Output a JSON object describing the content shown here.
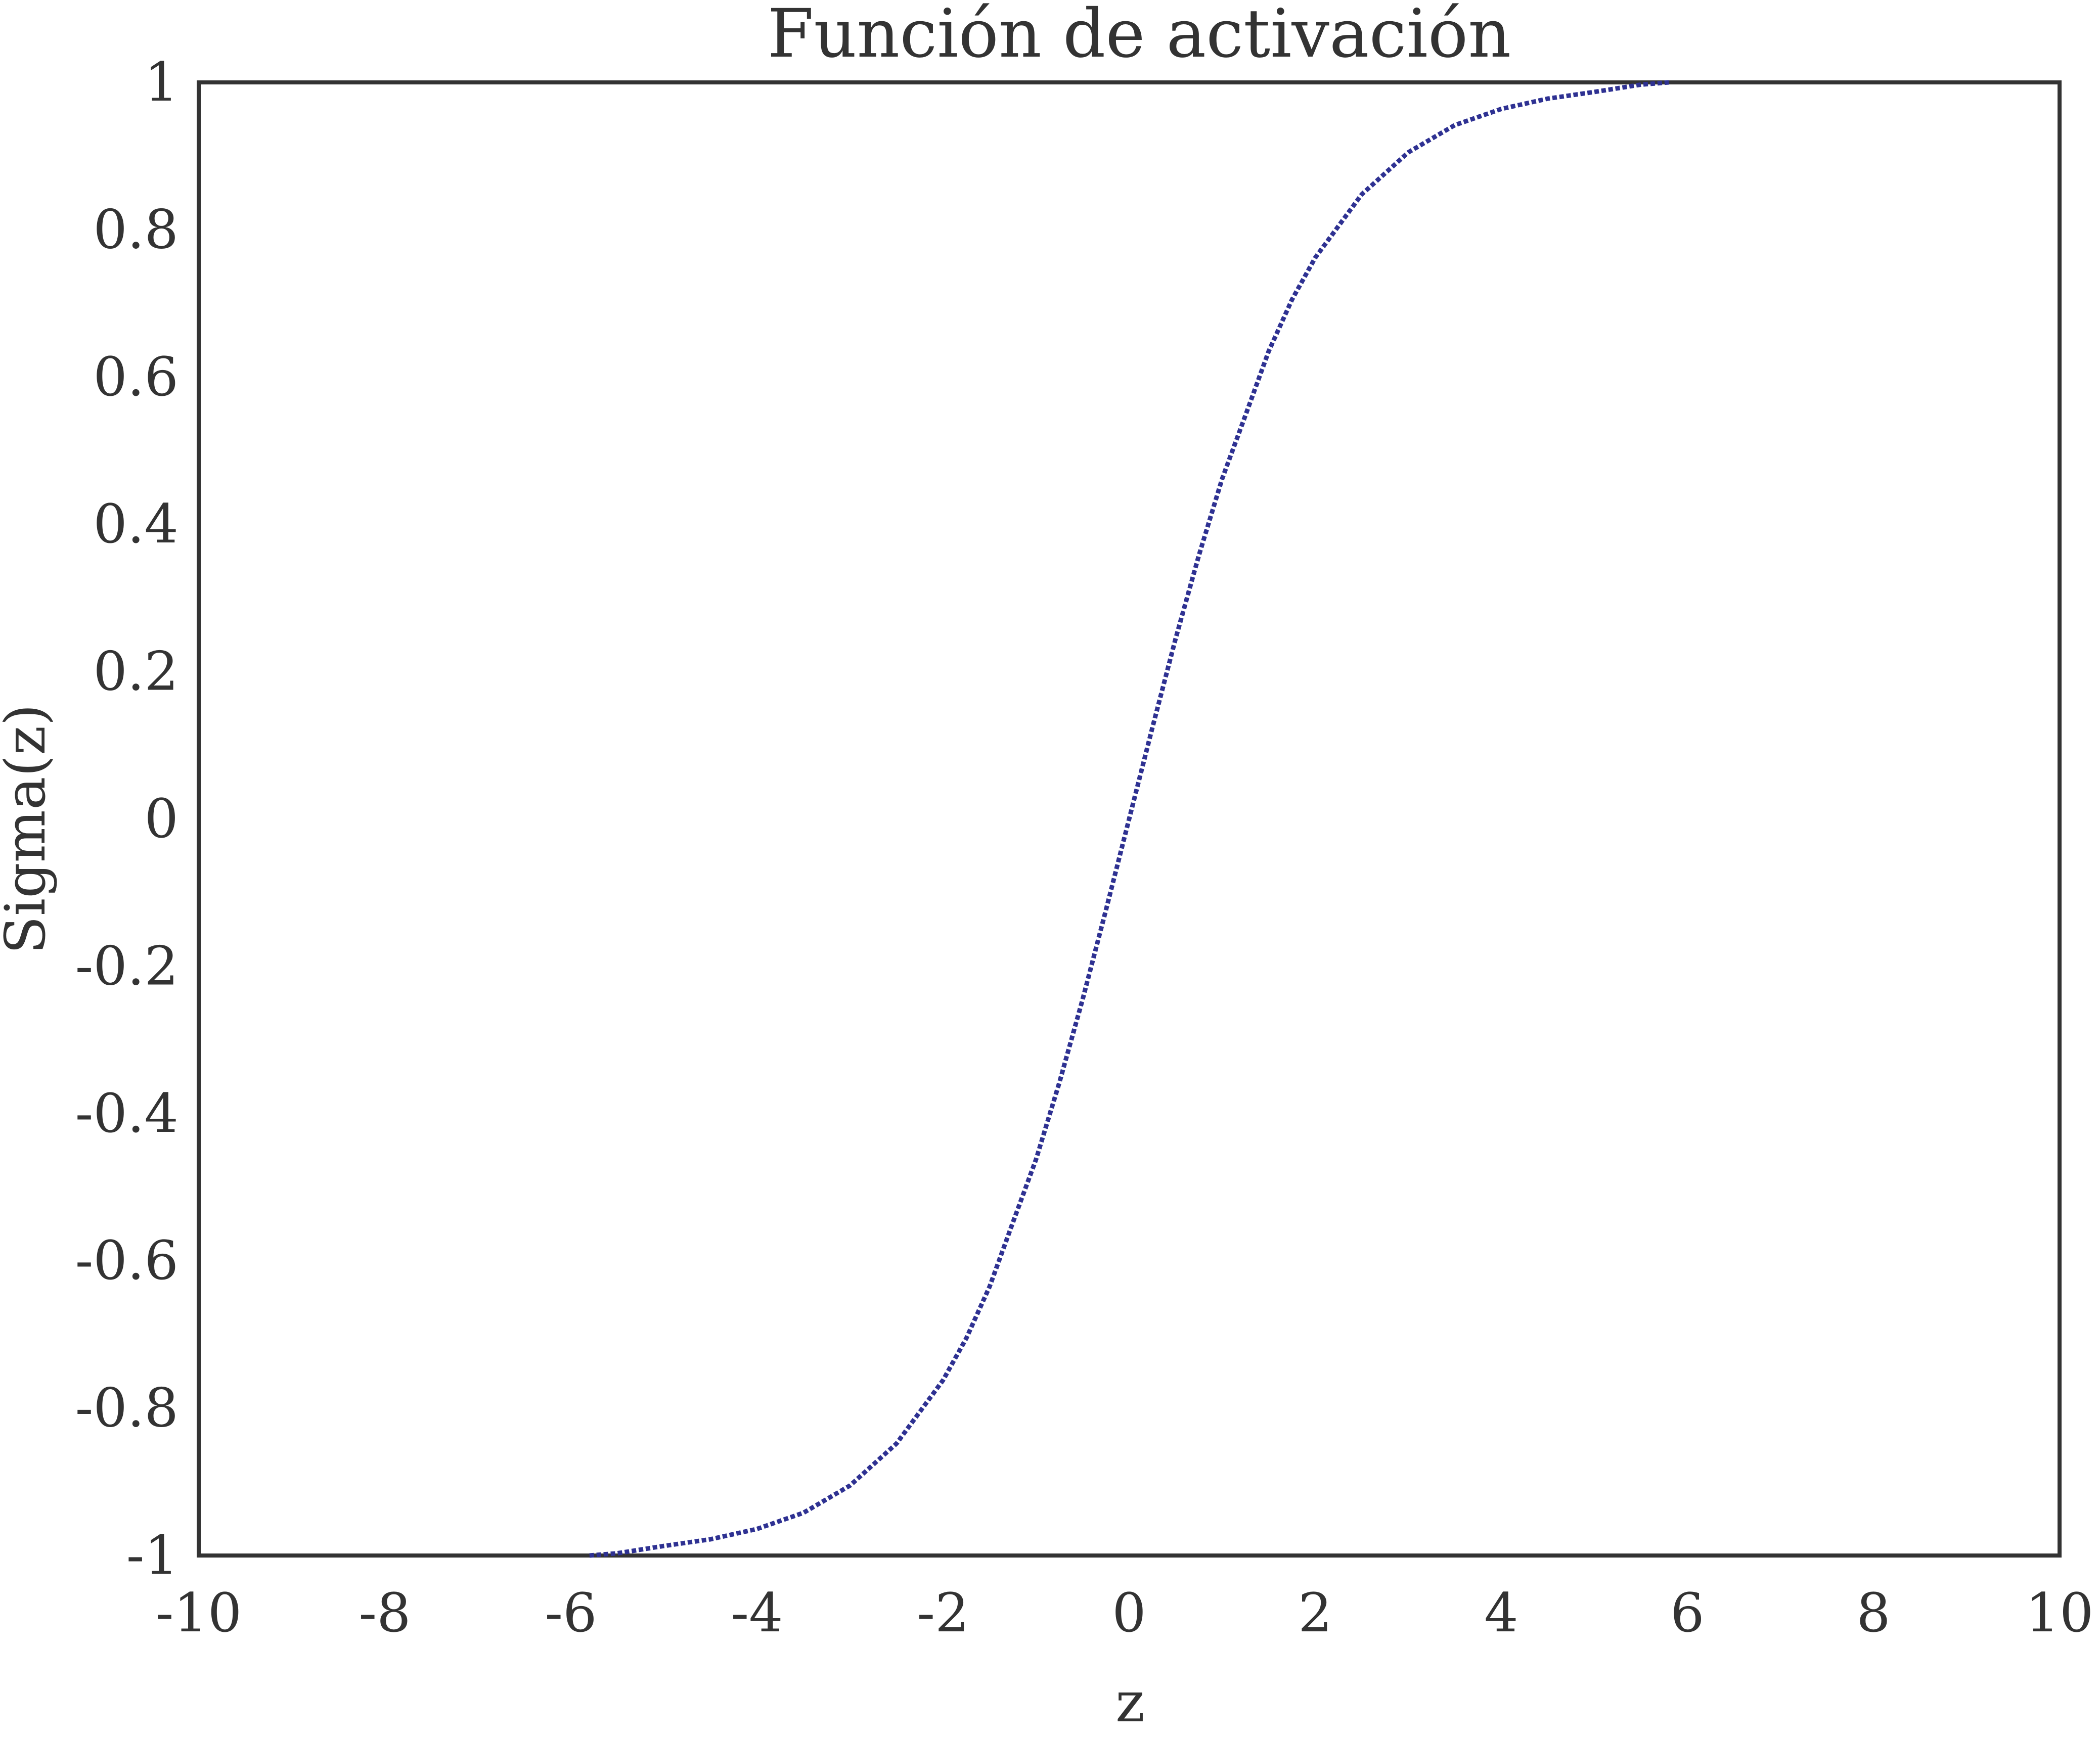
{
  "chart_data": {
    "type": "line",
    "title": "Función de activación",
    "xlabel": "z",
    "ylabel": "Sigma(z)",
    "xlim": [
      -10,
      10
    ],
    "ylim": [
      -1,
      1
    ],
    "x_ticks": [
      "-10",
      "-8",
      "-6",
      "-4",
      "-2",
      "0",
      "2",
      "4",
      "6",
      "8",
      "10"
    ],
    "y_ticks": [
      "-1",
      "-0.8",
      "-0.6",
      "-0.4",
      "-0.2",
      "0",
      "0.2",
      "0.4",
      "0.6",
      "0.8",
      "1"
    ],
    "grid": false,
    "legend": "none",
    "series": [
      {
        "line_style": "dotted",
        "color": "#2e3192",
        "x": [
          -5.8,
          -5.5,
          -5,
          -4.5,
          -4,
          -3.5,
          -3,
          -2.5,
          -2,
          -1.75,
          -1.5,
          -1.25,
          -1,
          -0.75,
          -0.5,
          -0.25,
          0,
          0.25,
          0.5,
          0.75,
          1,
          1.25,
          1.5,
          1.75,
          2,
          2.5,
          3,
          3.5,
          4,
          4.5,
          5,
          5.5,
          5.8
        ],
        "y": [
          -1.0,
          -0.997,
          -0.987,
          -0.978,
          -0.964,
          -0.942,
          -0.905,
          -0.848,
          -0.762,
          -0.705,
          -0.635,
          -0.548,
          -0.462,
          -0.358,
          -0.245,
          -0.124,
          0.0,
          0.124,
          0.245,
          0.358,
          0.462,
          0.548,
          0.635,
          0.705,
          0.762,
          0.848,
          0.905,
          0.942,
          0.964,
          0.978,
          0.987,
          0.997,
          1.0
        ]
      }
    ]
  }
}
